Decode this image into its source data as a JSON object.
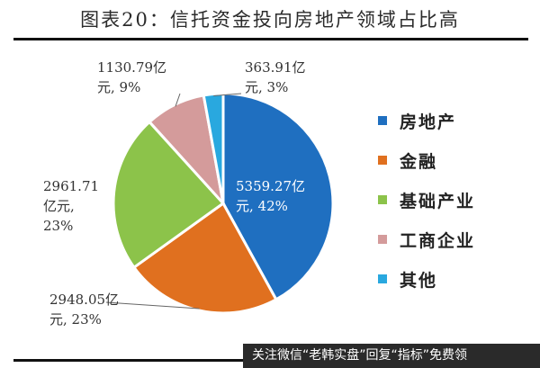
{
  "title": "图表20：信托资金投向房地产领域占比高",
  "chart_data": {
    "type": "pie",
    "categories": [
      "房地产",
      "金融",
      "基础产业",
      "工商企业",
      "其他"
    ],
    "values": [
      5359.27,
      2948.05,
      2961.71,
      1130.79,
      363.91
    ],
    "percents": [
      42,
      23,
      23,
      9,
      3
    ],
    "labels": [
      [
        "5359.27亿",
        "元, 42%"
      ],
      [
        "2948.05亿",
        "元, 23%"
      ],
      [
        "2961.71",
        "亿元,",
        "23%"
      ],
      [
        "1130.79亿",
        "元, 9%"
      ],
      [
        "363.91亿",
        "元, 3%"
      ]
    ],
    "colors": [
      "#1f6fc0",
      "#e0701f",
      "#8cc34a",
      "#d49b9b",
      "#29a8df"
    ],
    "legend_position": "right"
  },
  "watermark": "关注微信“老韩实盘”回复“指标”免费领"
}
